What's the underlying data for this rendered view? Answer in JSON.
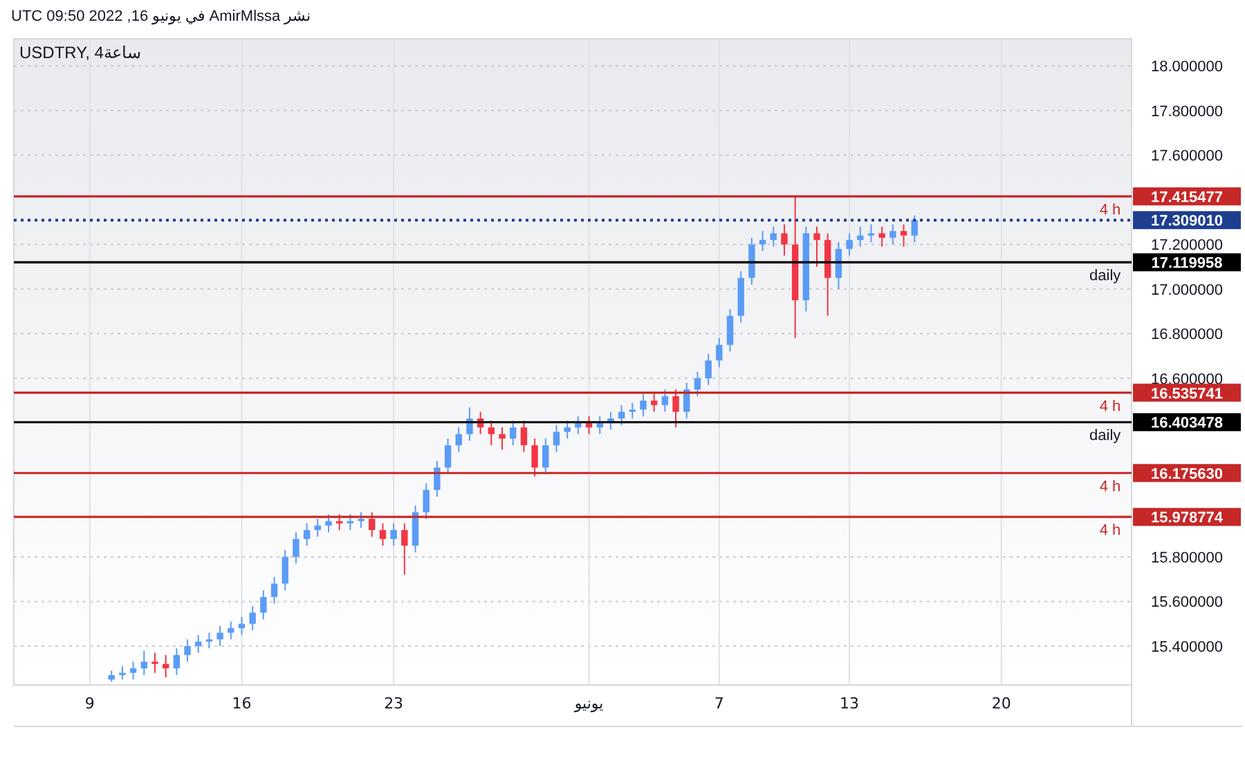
{
  "chart_data": {
    "type": "candlestick",
    "title": "USDTRY, 4ساعة",
    "annotations": [
      "نشر AmirMlssa في يونيو 16, 2022 09:50 UTC",
      {
        "text": "4 h",
        "x": "2022-06-25T12:00",
        "y": 17.415477
      },
      {
        "text": "daily",
        "x": "2022-06-25T12:00",
        "y": 17.119958
      },
      {
        "text": "4 h",
        "x": "2022-06-25T12:00",
        "y": 16.535741
      },
      {
        "text": "daily",
        "x": "2022-06-25T12:00",
        "y": 16.403478
      },
      {
        "text": "4 h",
        "x": "2022-06-25T12:00",
        "y": 16.17563
      },
      {
        "text": "4 h",
        "x": "2022-06-25T12:00",
        "y": 15.978774
      }
    ],
    "x": [
      "2022-05-10T00:00",
      "2022-05-10T12:00",
      "2022-05-11T00:00",
      "2022-05-11T12:00",
      "2022-05-12T00:00",
      "2022-05-12T12:00",
      "2022-05-13T00:00",
      "2022-05-13T12:00",
      "2022-05-14T00:00",
      "2022-05-14T12:00",
      "2022-05-15T00:00",
      "2022-05-15T12:00",
      "2022-05-16T00:00",
      "2022-05-16T12:00",
      "2022-05-17T00:00",
      "2022-05-17T12:00",
      "2022-05-18T00:00",
      "2022-05-18T12:00",
      "2022-05-19T00:00",
      "2022-05-19T12:00",
      "2022-05-20T00:00",
      "2022-05-20T12:00",
      "2022-05-21T00:00",
      "2022-05-21T12:00",
      "2022-05-22T00:00",
      "2022-05-22T12:00",
      "2022-05-23T00:00",
      "2022-05-23T12:00",
      "2022-05-24T00:00",
      "2022-05-24T12:00",
      "2022-05-25T00:00",
      "2022-05-25T12:00",
      "2022-05-26T00:00",
      "2022-05-26T12:00",
      "2022-05-27T00:00",
      "2022-05-27T12:00",
      "2022-05-28T00:00",
      "2022-05-28T12:00",
      "2022-05-29T00:00",
      "2022-05-29T12:00",
      "2022-05-30T00:00",
      "2022-05-30T12:00",
      "2022-05-31T00:00",
      "2022-05-31T12:00",
      "2022-06-01T00:00",
      "2022-06-01T12:00",
      "2022-06-02T00:00",
      "2022-06-02T12:00",
      "2022-06-03T00:00",
      "2022-06-03T12:00",
      "2022-06-04T00:00",
      "2022-06-04T12:00",
      "2022-06-05T00:00",
      "2022-06-05T12:00",
      "2022-06-06T00:00",
      "2022-06-06T12:00",
      "2022-06-07T00:00",
      "2022-06-07T12:00",
      "2022-06-08T00:00",
      "2022-06-08T12:00",
      "2022-06-09T00:00",
      "2022-06-09T12:00",
      "2022-06-10T00:00",
      "2022-06-10T12:00",
      "2022-06-11T00:00",
      "2022-06-11T12:00",
      "2022-06-12T00:00",
      "2022-06-12T12:00",
      "2022-06-13T00:00",
      "2022-06-13T12:00",
      "2022-06-14T00:00",
      "2022-06-14T12:00",
      "2022-06-15T00:00",
      "2022-06-15T12:00",
      "2022-06-16T00:00"
    ],
    "ohlc": [
      [
        15.25,
        15.29,
        15.24,
        15.27
      ],
      [
        15.27,
        15.31,
        15.25,
        15.28
      ],
      [
        15.28,
        15.33,
        15.25,
        15.3
      ],
      [
        15.3,
        15.38,
        15.27,
        15.33
      ],
      [
        15.33,
        15.37,
        15.28,
        15.32
      ],
      [
        15.32,
        15.36,
        15.26,
        15.3
      ],
      [
        15.3,
        15.39,
        15.27,
        15.36
      ],
      [
        15.36,
        15.43,
        15.33,
        15.4
      ],
      [
        15.4,
        15.45,
        15.37,
        15.42
      ],
      [
        15.42,
        15.46,
        15.39,
        15.43
      ],
      [
        15.43,
        15.49,
        15.4,
        15.46
      ],
      [
        15.46,
        15.51,
        15.43,
        15.48
      ],
      [
        15.48,
        15.53,
        15.45,
        15.5
      ],
      [
        15.5,
        15.58,
        15.47,
        15.55
      ],
      [
        15.55,
        15.65,
        15.52,
        15.62
      ],
      [
        15.62,
        15.71,
        15.59,
        15.68
      ],
      [
        15.68,
        15.83,
        15.65,
        15.8
      ],
      [
        15.8,
        15.91,
        15.77,
        15.88
      ],
      [
        15.88,
        15.95,
        15.85,
        15.92
      ],
      [
        15.92,
        15.97,
        15.89,
        15.94
      ],
      [
        15.94,
        15.99,
        15.91,
        15.96
      ],
      [
        15.96,
        15.99,
        15.92,
        15.95
      ],
      [
        15.95,
        15.99,
        15.92,
        15.96
      ],
      [
        15.96,
        16.0,
        15.93,
        15.97
      ],
      [
        15.97,
        16.0,
        15.89,
        15.92
      ],
      [
        15.92,
        15.95,
        15.85,
        15.88
      ],
      [
        15.88,
        15.95,
        15.85,
        15.92
      ],
      [
        15.92,
        15.95,
        15.72,
        15.85
      ],
      [
        15.85,
        16.03,
        15.82,
        16.0
      ],
      [
        16.0,
        16.13,
        15.97,
        16.1
      ],
      [
        16.1,
        16.23,
        16.07,
        16.2
      ],
      [
        16.2,
        16.33,
        16.17,
        16.3
      ],
      [
        16.3,
        16.38,
        16.27,
        16.35
      ],
      [
        16.35,
        16.47,
        16.32,
        16.42
      ],
      [
        16.42,
        16.45,
        16.35,
        16.38
      ],
      [
        16.38,
        16.41,
        16.3,
        16.35
      ],
      [
        16.35,
        16.38,
        16.28,
        16.33
      ],
      [
        16.33,
        16.41,
        16.3,
        16.38
      ],
      [
        16.38,
        16.41,
        16.27,
        16.3
      ],
      [
        16.3,
        16.33,
        16.16,
        16.2
      ],
      [
        16.2,
        16.33,
        16.17,
        16.3
      ],
      [
        16.3,
        16.39,
        16.27,
        16.36
      ],
      [
        16.36,
        16.41,
        16.33,
        16.38
      ],
      [
        16.38,
        16.43,
        16.35,
        16.4
      ],
      [
        16.4,
        16.43,
        16.35,
        16.38
      ],
      [
        16.38,
        16.43,
        16.35,
        16.4
      ],
      [
        16.4,
        16.45,
        16.37,
        16.42
      ],
      [
        16.42,
        16.48,
        16.39,
        16.45
      ],
      [
        16.45,
        16.49,
        16.42,
        16.46
      ],
      [
        16.46,
        16.53,
        16.43,
        16.5
      ],
      [
        16.5,
        16.53,
        16.45,
        16.48
      ],
      [
        16.48,
        16.55,
        16.45,
        16.52
      ],
      [
        16.52,
        16.55,
        16.38,
        16.45
      ],
      [
        16.45,
        16.58,
        16.42,
        16.55
      ],
      [
        16.55,
        16.63,
        16.52,
        16.6
      ],
      [
        16.6,
        16.71,
        16.57,
        16.68
      ],
      [
        16.68,
        16.78,
        16.65,
        16.75
      ],
      [
        16.75,
        16.91,
        16.72,
        16.88
      ],
      [
        16.88,
        17.08,
        16.85,
        17.05
      ],
      [
        17.05,
        17.23,
        17.02,
        17.2
      ],
      [
        17.2,
        17.26,
        17.17,
        17.22
      ],
      [
        17.22,
        17.28,
        17.19,
        17.25
      ],
      [
        17.25,
        17.29,
        17.15,
        17.2
      ],
      [
        17.2,
        17.42,
        16.78,
        16.95
      ],
      [
        16.95,
        17.28,
        16.9,
        17.25
      ],
      [
        17.25,
        17.28,
        17.1,
        17.22
      ],
      [
        17.22,
        17.25,
        16.88,
        17.05
      ],
      [
        17.05,
        17.21,
        17.0,
        17.18
      ],
      [
        17.18,
        17.25,
        17.15,
        17.22
      ],
      [
        17.22,
        17.28,
        17.19,
        17.24
      ],
      [
        17.24,
        17.29,
        17.21,
        17.25
      ],
      [
        17.25,
        17.28,
        17.19,
        17.23
      ],
      [
        17.23,
        17.29,
        17.2,
        17.26
      ],
      [
        17.26,
        17.29,
        17.19,
        17.24
      ],
      [
        17.24,
        17.33,
        17.21,
        17.31
      ]
    ],
    "xlim": [
      "2022-05-05T12:00",
      "2022-06-26T00:00"
    ],
    "xticks": [
      {
        "value": "2022-05-09",
        "label": "9"
      },
      {
        "value": "2022-05-16",
        "label": "16"
      },
      {
        "value": "2022-05-23",
        "label": "23"
      },
      {
        "value": "2022-06-01",
        "label": "يونيو"
      },
      {
        "value": "2022-06-07",
        "label": "7"
      },
      {
        "value": "2022-06-13",
        "label": "13"
      },
      {
        "value": "2022-06-20",
        "label": "20"
      }
    ],
    "ylim": [
      15.226,
      18.122
    ],
    "yticks": [
      {
        "value": 15.4,
        "label": "15.400000"
      },
      {
        "value": 15.6,
        "label": "15.600000"
      },
      {
        "value": 15.8,
        "label": "15.800000"
      },
      {
        "value": 16.6,
        "label": "16.600000"
      },
      {
        "value": 16.8,
        "label": "16.800000"
      },
      {
        "value": 17.0,
        "label": "17.000000"
      },
      {
        "value": 17.2,
        "label": "17.200000"
      },
      {
        "value": 17.6,
        "label": "17.600000"
      },
      {
        "value": 17.8,
        "label": "17.800000"
      },
      {
        "value": 18.0,
        "label": "18.000000"
      }
    ],
    "ref_lines": [
      {
        "axis": "y",
        "value": 17.415477,
        "label": "17.415477",
        "color": "#c62828"
      },
      {
        "axis": "y",
        "value": 17.30901,
        "label": "17.309010",
        "color": "#1e3f8f",
        "line_style": "dotted"
      },
      {
        "axis": "y",
        "value": 17.119958,
        "label": "17.119958",
        "color": "#000000"
      },
      {
        "axis": "y",
        "value": 16.535741,
        "label": "16.535741",
        "color": "#c62828"
      },
      {
        "axis": "y",
        "value": 16.403478,
        "label": "16.403478",
        "color": "#000000"
      },
      {
        "axis": "y",
        "value": 16.17563,
        "label": "16.175630",
        "color": "#c62828"
      },
      {
        "axis": "y",
        "value": 15.978774,
        "label": "15.978774",
        "color": "#c62828"
      }
    ],
    "grid": true
  }
}
